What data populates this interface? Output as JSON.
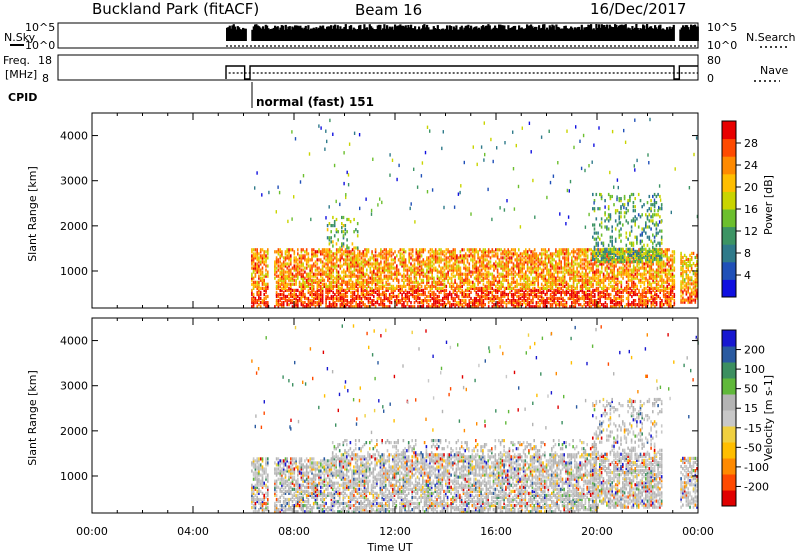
{
  "header": {
    "station": "Buckland Park (fitACF)",
    "beam": "Beam 16",
    "date": "16/Dec/2017"
  },
  "sky_panel": {
    "left_label": "N.Sky",
    "right_label": "N.Search",
    "left_ticks": [
      "10^5",
      "10^0"
    ],
    "right_ticks": [
      "10^5",
      "10^0"
    ]
  },
  "freq_panel": {
    "left_label_1": "Freq.",
    "left_label_2": "[MHz]",
    "right_label": "Nave",
    "left_ticks": [
      "18",
      "8"
    ],
    "right_ticks": [
      "80",
      "0"
    ]
  },
  "cpid": {
    "label": "CPID",
    "value": "normal (fast) 151"
  },
  "colors": {
    "power_scale": [
      "#1010e0",
      "#2050b8",
      "#2f7a8a",
      "#3c9464",
      "#6cbf2e",
      "#c9d400",
      "#ffbe00",
      "#ff8a00",
      "#ff4a00",
      "#e80000"
    ],
    "velocity_scale": [
      "#e00000",
      "#ff4a00",
      "#ff8a00",
      "#ffbe00",
      "#f0d040",
      "#c8c8c8",
      "#b4b4b4",
      "#60b83a",
      "#3c8f60",
      "#2a5aa0",
      "#1818d0"
    ]
  },
  "chart_data": [
    {
      "type": "heatmap",
      "title": "",
      "ylabel": "Slant Range [km]",
      "xlabel": "",
      "ylim": [
        180,
        4500
      ],
      "y_ticks": [
        1000,
        2000,
        3000,
        4000
      ],
      "y_tick_labels": [
        "1000",
        "2000",
        "3000",
        "4000"
      ],
      "x_range_hours": [
        0,
        24
      ],
      "colorbar": {
        "label": "Power [dB]",
        "range": [
          0,
          32
        ],
        "ticks": [
          "4",
          "8",
          "12",
          "16",
          "20",
          "24",
          "28"
        ]
      },
      "data_gap_hours": [
        [
          0,
          6.3
        ],
        [
          7.0,
          7.2
        ],
        [
          23.1,
          23.3
        ]
      ],
      "echo_regions": [
        {
          "start": 6.3,
          "end": 23.1,
          "range_km": [
            200,
            1500
          ],
          "mean_power_db": 24
        },
        {
          "start": 9.3,
          "end": 10.5,
          "range_km": [
            1500,
            2200
          ],
          "mean_power_db": 14
        },
        {
          "start": 19.8,
          "end": 22.6,
          "range_km": [
            1200,
            2700
          ],
          "mean_power_db": 12
        },
        {
          "start": 23.3,
          "end": 24.0,
          "range_km": [
            300,
            1400
          ],
          "mean_power_db": 22
        }
      ]
    },
    {
      "type": "heatmap",
      "title": "",
      "ylabel": "Slant Range [km]",
      "xlabel": "Time UT",
      "ylim": [
        180,
        4500
      ],
      "y_ticks": [
        1000,
        2000,
        3000,
        4000
      ],
      "y_tick_labels": [
        "1000",
        "2000",
        "3000",
        "4000"
      ],
      "x_range_hours": [
        0,
        24
      ],
      "x_ticks": [
        0,
        4,
        8,
        12,
        16,
        20,
        24
      ],
      "x_tick_labels": [
        "00:00",
        "04:00",
        "08:00",
        "12:00",
        "16:00",
        "20:00",
        "00:00"
      ],
      "colorbar": {
        "label": "Velocity [m s-1]",
        "range": [
          -250,
          250
        ],
        "ticks": [
          "200",
          "100",
          "50",
          "15",
          "-15",
          "-50",
          "-100",
          "-200"
        ]
      },
      "data_gap_hours": [
        [
          0,
          6.3
        ],
        [
          7.0,
          7.2
        ],
        [
          23.1,
          23.3
        ]
      ],
      "echo_regions": [
        {
          "start": 6.3,
          "end": 9.5,
          "range_km": [
            200,
            1400
          ],
          "mean_velocity": 0
        },
        {
          "start": 9.5,
          "end": 20.0,
          "range_km": [
            200,
            1800
          ],
          "mean_velocity": 0
        },
        {
          "start": 19.8,
          "end": 22.6,
          "range_km": [
            300,
            2700
          ],
          "mean_velocity": 0
        },
        {
          "start": 23.3,
          "end": 24.0,
          "range_km": [
            300,
            1400
          ],
          "mean_velocity": 0
        }
      ]
    }
  ]
}
